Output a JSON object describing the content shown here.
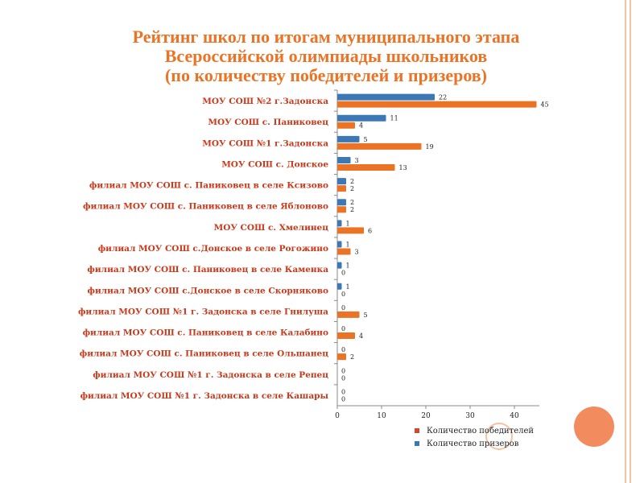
{
  "title_lines": [
    "Рейтинг школ по итогам муниципального этапа",
    "Всероссийской олимпиады школьников",
    "(по количеству победителей и призеров)"
  ],
  "colors": {
    "winners": "#ea7326",
    "prizewinners": "#3c78b5",
    "category_label": "#c8391b",
    "legend_winners": "#d9452b"
  },
  "chart_data": {
    "type": "bar",
    "orientation": "horizontal",
    "categories": [
      "МОУ СОШ №2 г.Задонска",
      "МОУ СОШ с. Паниковец",
      "МОУ СОШ №1 г.Задонска",
      "МОУ СОШ с. Донское",
      "филиал МОУ СОШ с. Паниковец в селе Ксизово",
      "филиал МОУ СОШ с. Паниковец в селе  Яблоново",
      "МОУ СОШ с. Хмелинец",
      "филиал МОУ СОШ с.Донское в селе  Рогожино",
      "филиал МОУ СОШ с. Паниковец в селе Каменка",
      "филиал МОУ СОШ с.Донское в селе Скорняково",
      "филиал МОУ СОШ №1 г. Задонска в селе Гнилуша",
      "филиал МОУ СОШ с. Паниковец в селе Калабино",
      "филиал МОУ СОШ с. Паниковец в селе  Ольшанец",
      "филиал МОУ СОШ №1 г. Задонска в селе  Репец",
      "филиал МОУ СОШ №1 г. Задонска в селе Кашары"
    ],
    "series": [
      {
        "name": "Количество победителей",
        "values": [
          45,
          4,
          19,
          13,
          2,
          2,
          6,
          3,
          0,
          0,
          5,
          4,
          2,
          0,
          0
        ]
      },
      {
        "name": "Количество призеров",
        "values": [
          22,
          11,
          5,
          3,
          2,
          2,
          1,
          1,
          1,
          1,
          0,
          0,
          0,
          0,
          0
        ]
      }
    ],
    "xlim": [
      0,
      45
    ],
    "xticks": [
      "0",
      "10",
      "20",
      "30",
      "40"
    ],
    "legend_position": "bottom-right"
  }
}
